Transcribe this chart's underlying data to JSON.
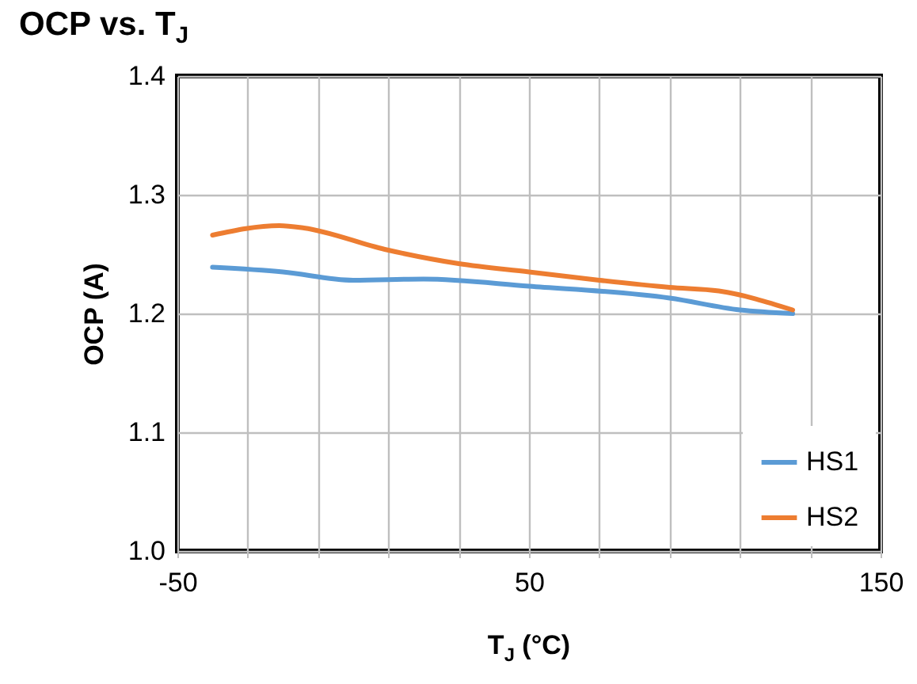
{
  "chart_data": {
    "type": "line",
    "title": "OCP vs. T$_{J}$",
    "xlabel": "T$_{J}$ (°C)",
    "ylabel": "OCP (A)",
    "series": [
      {
        "name": "HS1",
        "color": "#5b9bd5",
        "x": [
          -40,
          -20,
          0,
          20,
          50,
          90,
          110,
          125
        ],
        "values": [
          1.239,
          1.235,
          1.228,
          1.229,
          1.223,
          1.213,
          1.203,
          1.2
        ]
      },
      {
        "name": "HS2",
        "color": "#ed7d31",
        "x": [
          -40,
          -21,
          -14,
          9,
          30,
          50,
          70,
          90,
          104,
          125
        ],
        "values": [
          1.266,
          1.274,
          1.272,
          1.254,
          1.242,
          1.235,
          1.228,
          1.222,
          1.219,
          1.203
        ]
      }
    ],
    "xlim": [
      -50,
      150
    ],
    "xticks": [
      -50,
      {
        "value": -30,
        "label": null
      },
      {
        "value": -10,
        "label": null
      },
      {
        "value": 10,
        "label": null
      },
      {
        "value": 30,
        "label": null
      },
      50,
      {
        "value": 70,
        "label": null
      },
      {
        "value": 90,
        "label": null
      },
      {
        "value": 110,
        "label": null
      },
      {
        "value": 130,
        "label": null
      },
      150
    ],
    "ylim": [
      1.0,
      1.4
    ],
    "yticks": [
      {
        "value": 1.0,
        "label": "1.0"
      },
      1.1,
      1.2,
      1.3,
      1.4
    ],
    "grid": true,
    "legend": "bottom right",
    "line_style": "solid",
    "marker": "none"
  }
}
